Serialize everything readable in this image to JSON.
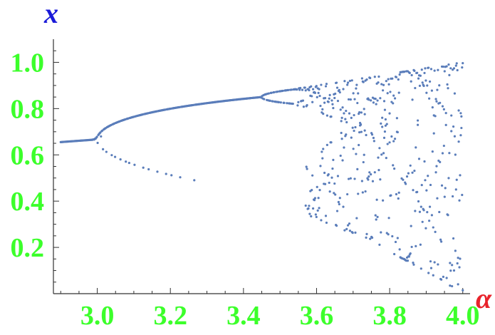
{
  "chart_data": {
    "type": "scatter",
    "title": "",
    "xlabel": "α",
    "ylabel": "x",
    "xlabel_color": "#e8232b",
    "ylabel_color": "#1a1ad8",
    "tick_label_color": "#3cff2b",
    "point_color": "#5a7dba",
    "xlim": [
      2.88,
      4.02
    ],
    "ylim": [
      0.0,
      1.1
    ],
    "xticks": [
      3.0,
      3.2,
      3.4,
      3.6,
      3.8,
      4.0
    ],
    "xtick_labels": [
      "3.0",
      "3.2",
      "3.4",
      "3.6",
      "3.8",
      "4.0"
    ],
    "yticks": [
      0.2,
      0.4,
      0.6,
      0.8,
      1.0
    ],
    "ytick_labels": [
      "0.2",
      "0.4",
      "0.6",
      "0.8",
      "1.0"
    ],
    "grid": false,
    "series": [
      {
        "name": "",
        "description_values": "x-values are the long-run iterates of the logistic map x_{n+1} = α·x_n·(1−x_n) for each α",
        "alpha_min": 2.9,
        "alpha_max": 4.0,
        "alpha_samples": 600,
        "transient_iterations": 300,
        "points_per_alpha": 1,
        "chaotic_points_per_alpha": 2
      }
    ]
  }
}
